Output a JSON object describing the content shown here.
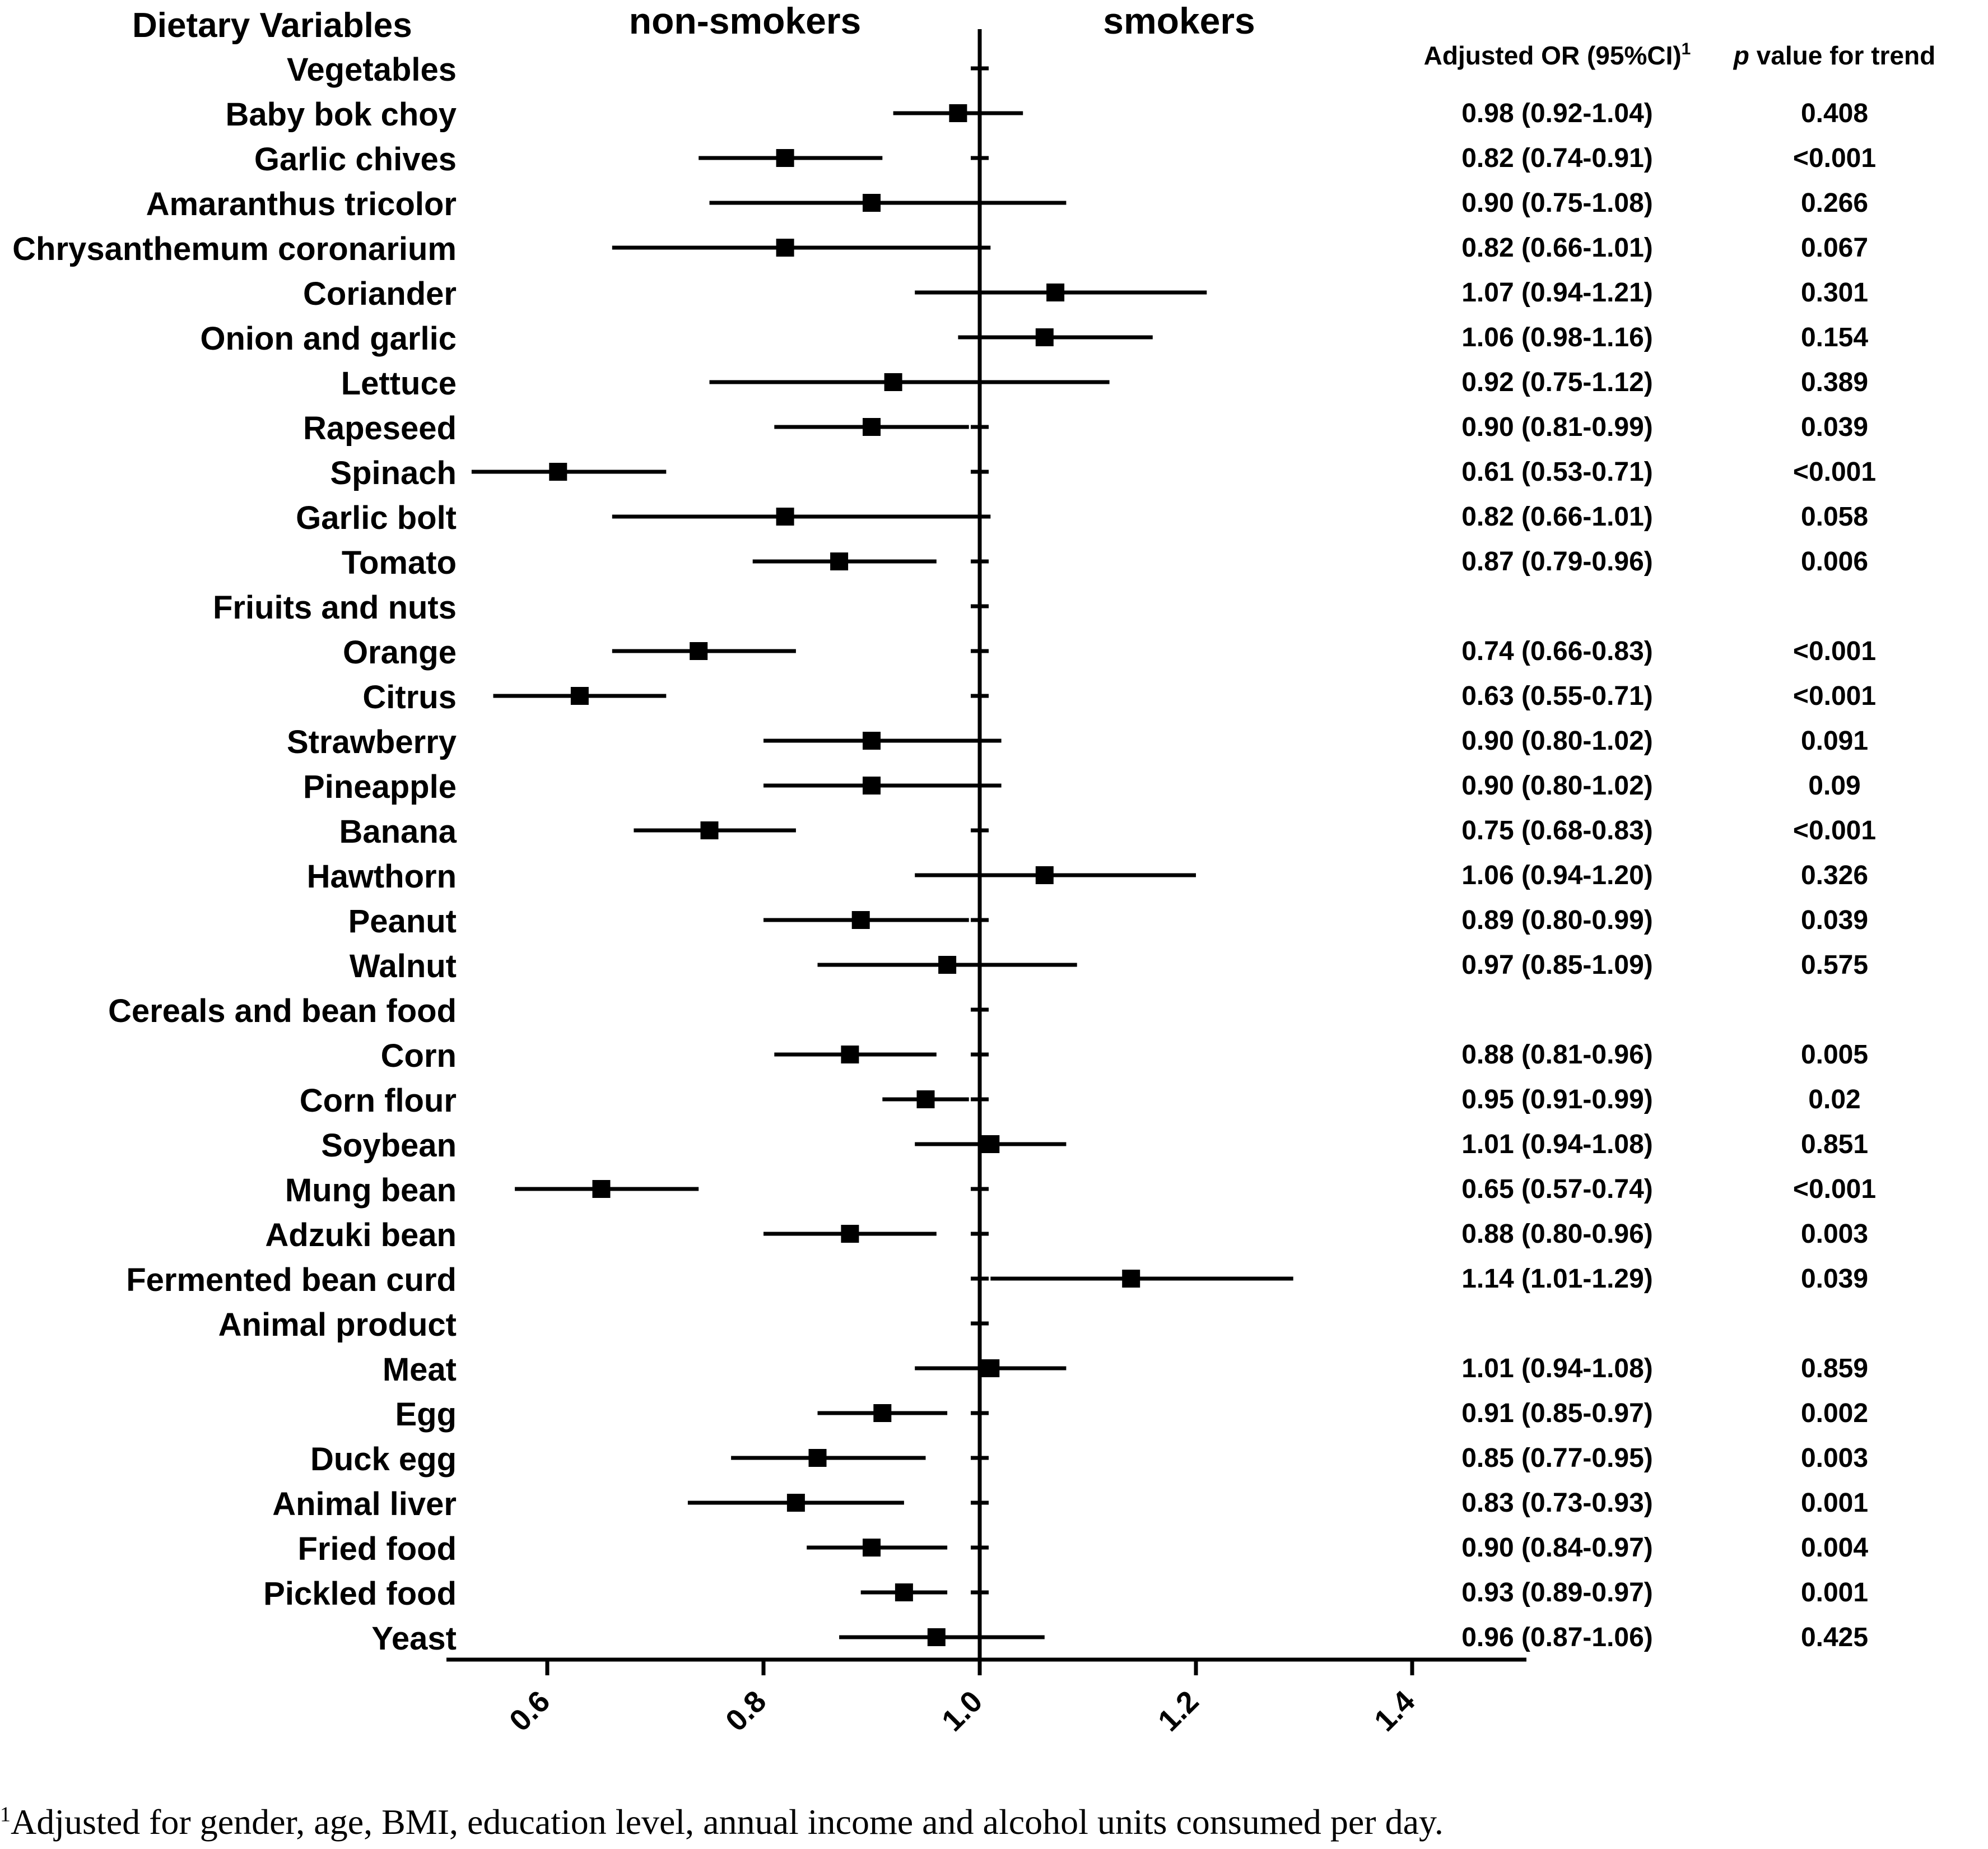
{
  "chart_data": {
    "type": "forest",
    "reference_value": 1.0,
    "xlim": [
      0.5,
      1.5
    ],
    "xticks": [
      0.6,
      0.8,
      1.0,
      1.2,
      1.4
    ],
    "xtick_labels": [
      "0.6",
      "0.8",
      "1.0",
      "1.2",
      "1.4"
    ],
    "headers": {
      "variables": "Dietary Variables",
      "left_label": "non-smokers",
      "right_label": "smokers",
      "or_column": "Adjusted OR (95%CI)",
      "or_superscript": "1",
      "p_italic": "p",
      "p_column": " value for trend"
    },
    "rows": [
      {
        "label": "Vegetables",
        "category": true
      },
      {
        "label": "Baby bok choy",
        "or": 0.98,
        "lo": 0.92,
        "hi": 1.04,
        "text": "0.98 (0.92-1.04)",
        "p": "0.408"
      },
      {
        "label": "Garlic chives",
        "or": 0.82,
        "lo": 0.74,
        "hi": 0.91,
        "text": "0.82 (0.74-0.91)",
        "p": "<0.001"
      },
      {
        "label": "Amaranthus tricolor",
        "or": 0.9,
        "lo": 0.75,
        "hi": 1.08,
        "text": "0.90 (0.75-1.08)",
        "p": "0.266"
      },
      {
        "label": "Chrysanthemum coronarium",
        "or": 0.82,
        "lo": 0.66,
        "hi": 1.01,
        "text": "0.82 (0.66-1.01)",
        "p": "0.067"
      },
      {
        "label": "Coriander",
        "or": 1.07,
        "lo": 0.94,
        "hi": 1.21,
        "text": "1.07 (0.94-1.21)",
        "p": "0.301"
      },
      {
        "label": "Onion and garlic",
        "or": 1.06,
        "lo": 0.98,
        "hi": 1.16,
        "text": "1.06 (0.98-1.16)",
        "p": "0.154"
      },
      {
        "label": "Lettuce",
        "or": 0.92,
        "lo": 0.75,
        "hi": 1.12,
        "text": "0.92 (0.75-1.12)",
        "p": "0.389"
      },
      {
        "label": "Rapeseed",
        "or": 0.9,
        "lo": 0.81,
        "hi": 0.99,
        "text": "0.90 (0.81-0.99)",
        "p": "0.039"
      },
      {
        "label": "Spinach",
        "or": 0.61,
        "lo": 0.53,
        "hi": 0.71,
        "text": "0.61 (0.53-0.71)",
        "p": "<0.001"
      },
      {
        "label": "Garlic bolt",
        "or": 0.82,
        "lo": 0.66,
        "hi": 1.01,
        "text": "0.82 (0.66-1.01)",
        "p": "0.058"
      },
      {
        "label": "Tomato",
        "or": 0.87,
        "lo": 0.79,
        "hi": 0.96,
        "text": "0.87 (0.79-0.96)",
        "p": "0.006"
      },
      {
        "label": "Friuits and nuts",
        "category": true
      },
      {
        "label": "Orange",
        "or": 0.74,
        "lo": 0.66,
        "hi": 0.83,
        "text": "0.74 (0.66-0.83)",
        "p": "<0.001"
      },
      {
        "label": "Citrus",
        "or": 0.63,
        "lo": 0.55,
        "hi": 0.71,
        "text": "0.63 (0.55-0.71)",
        "p": "<0.001"
      },
      {
        "label": "Strawberry",
        "or": 0.9,
        "lo": 0.8,
        "hi": 1.02,
        "text": "0.90 (0.80-1.02)",
        "p": "0.091"
      },
      {
        "label": "Pineapple",
        "or": 0.9,
        "lo": 0.8,
        "hi": 1.02,
        "text": "0.90 (0.80-1.02)",
        "p": "0.09"
      },
      {
        "label": "Banana",
        "or": 0.75,
        "lo": 0.68,
        "hi": 0.83,
        "text": "0.75 (0.68-0.83)",
        "p": "<0.001"
      },
      {
        "label": "Hawthorn",
        "or": 1.06,
        "lo": 0.94,
        "hi": 1.2,
        "text": "1.06 (0.94-1.20)",
        "p": "0.326"
      },
      {
        "label": "Peanut",
        "or": 0.89,
        "lo": 0.8,
        "hi": 0.99,
        "text": "0.89 (0.80-0.99)",
        "p": "0.039"
      },
      {
        "label": "Walnut",
        "or": 0.97,
        "lo": 0.85,
        "hi": 1.09,
        "text": "0.97 (0.85-1.09)",
        "p": "0.575"
      },
      {
        "label": "Cereals and bean food",
        "category": true
      },
      {
        "label": "Corn",
        "or": 0.88,
        "lo": 0.81,
        "hi": 0.96,
        "text": "0.88 (0.81-0.96)",
        "p": "0.005"
      },
      {
        "label": "Corn flour",
        "or": 0.95,
        "lo": 0.91,
        "hi": 0.99,
        "text": "0.95 (0.91-0.99)",
        "p": "0.02"
      },
      {
        "label": "Soybean",
        "or": 1.01,
        "lo": 0.94,
        "hi": 1.08,
        "text": "1.01 (0.94-1.08)",
        "p": "0.851"
      },
      {
        "label": "Mung bean",
        "or": 0.65,
        "lo": 0.57,
        "hi": 0.74,
        "text": "0.65 (0.57-0.74)",
        "p": "<0.001"
      },
      {
        "label": "Adzuki bean",
        "or": 0.88,
        "lo": 0.8,
        "hi": 0.96,
        "text": "0.88 (0.80-0.96)",
        "p": "0.003"
      },
      {
        "label": "Fermented bean curd",
        "or": 1.14,
        "lo": 1.01,
        "hi": 1.29,
        "text": "1.14 (1.01-1.29)",
        "p": "0.039"
      },
      {
        "label": "Animal product",
        "category": true
      },
      {
        "label": "Meat",
        "or": 1.01,
        "lo": 0.94,
        "hi": 1.08,
        "text": "1.01 (0.94-1.08)",
        "p": "0.859"
      },
      {
        "label": "Egg",
        "or": 0.91,
        "lo": 0.85,
        "hi": 0.97,
        "text": "0.91 (0.85-0.97)",
        "p": "0.002"
      },
      {
        "label": "Duck egg",
        "or": 0.85,
        "lo": 0.77,
        "hi": 0.95,
        "text": "0.85 (0.77-0.95)",
        "p": "0.003"
      },
      {
        "label": "Animal liver",
        "or": 0.83,
        "lo": 0.73,
        "hi": 0.93,
        "text": "0.83 (0.73-0.93)",
        "p": "0.001"
      },
      {
        "label": "Fried food",
        "or": 0.9,
        "lo": 0.84,
        "hi": 0.97,
        "text": "0.90 (0.84-0.97)",
        "p": "0.004"
      },
      {
        "label": "Pickled food",
        "or": 0.93,
        "lo": 0.89,
        "hi": 0.97,
        "text": "0.93 (0.89-0.97)",
        "p": "0.001"
      },
      {
        "label": "Yeast",
        "or": 0.96,
        "lo": 0.87,
        "hi": 1.06,
        "text": "0.96 (0.87-1.06)",
        "p": "0.425"
      }
    ]
  },
  "footnote": {
    "marker": "1",
    "text": "Adjusted for gender, age, BMI, education level, annual income and alcohol units consumed per day."
  }
}
